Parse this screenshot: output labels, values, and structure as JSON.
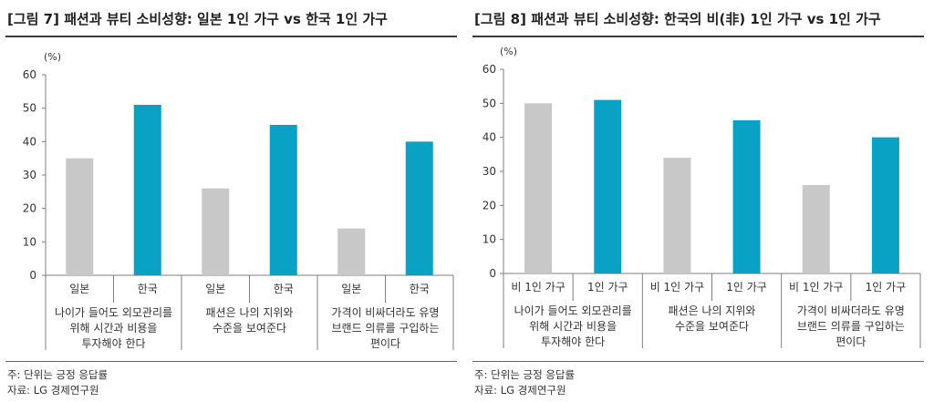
{
  "notes": {
    "unit": "주: 단위는 긍정 응답률",
    "source": "자료: LG 경제연구원"
  },
  "colors": {
    "gray": "#c8c8c8",
    "blue": "#0aa2c4",
    "axis": "#7f7f7f"
  },
  "chart_data": [
    {
      "type": "bar",
      "title": "[그림 7] 패션과 뷰티 소비성향: 일본 1인 가구 vs 한국 1인 가구",
      "unit_label": "(%)",
      "ylim": [
        0,
        60
      ],
      "yticks": [
        0,
        10,
        20,
        30,
        40,
        50,
        60
      ],
      "groups": [
        {
          "label": "나이가 들어도 외모관리를\n위해 시간과 비용을\n투자해야 한다",
          "bars": [
            {
              "label": "일본",
              "value": 35,
              "color": "gray"
            },
            {
              "label": "한국",
              "value": 51,
              "color": "blue"
            }
          ]
        },
        {
          "label": "패션은 나의 지위와\n수준을 보여준다",
          "bars": [
            {
              "label": "일본",
              "value": 26,
              "color": "gray"
            },
            {
              "label": "한국",
              "value": 45,
              "color": "blue"
            }
          ]
        },
        {
          "label": "가격이 비싸더라도 유명\n브랜드 의류를 구입하는\n편이다",
          "bars": [
            {
              "label": "일본",
              "value": 14,
              "color": "gray"
            },
            {
              "label": "한국",
              "value": 40,
              "color": "blue"
            }
          ]
        }
      ]
    },
    {
      "type": "bar",
      "title": "[그림 8] 패션과 뷰티 소비성향: 한국의 비(非) 1인 가구 vs 1인 가구",
      "unit_label": "(%)",
      "ylim": [
        0,
        60
      ],
      "yticks": [
        0,
        10,
        20,
        30,
        40,
        50,
        60
      ],
      "groups": [
        {
          "label": "나이가 들어도 외모관리를\n위해 시간과 비용을\n투자해야 한다",
          "bars": [
            {
              "label": "비 1인 가구",
              "value": 50,
              "color": "gray"
            },
            {
              "label": "1인 가구",
              "value": 51,
              "color": "blue"
            }
          ]
        },
        {
          "label": "패션은 나의 지위와\n수준을 보여준다",
          "bars": [
            {
              "label": "비 1인 가구",
              "value": 34,
              "color": "gray"
            },
            {
              "label": "1인 가구",
              "value": 45,
              "color": "blue"
            }
          ]
        },
        {
          "label": "가격이 비싸더라도 유명\n브랜드 의류를 구입하는\n편이다",
          "bars": [
            {
              "label": "비 1인 가구",
              "value": 26,
              "color": "gray"
            },
            {
              "label": "1인 가구",
              "value": 40,
              "color": "blue"
            }
          ]
        }
      ]
    }
  ]
}
